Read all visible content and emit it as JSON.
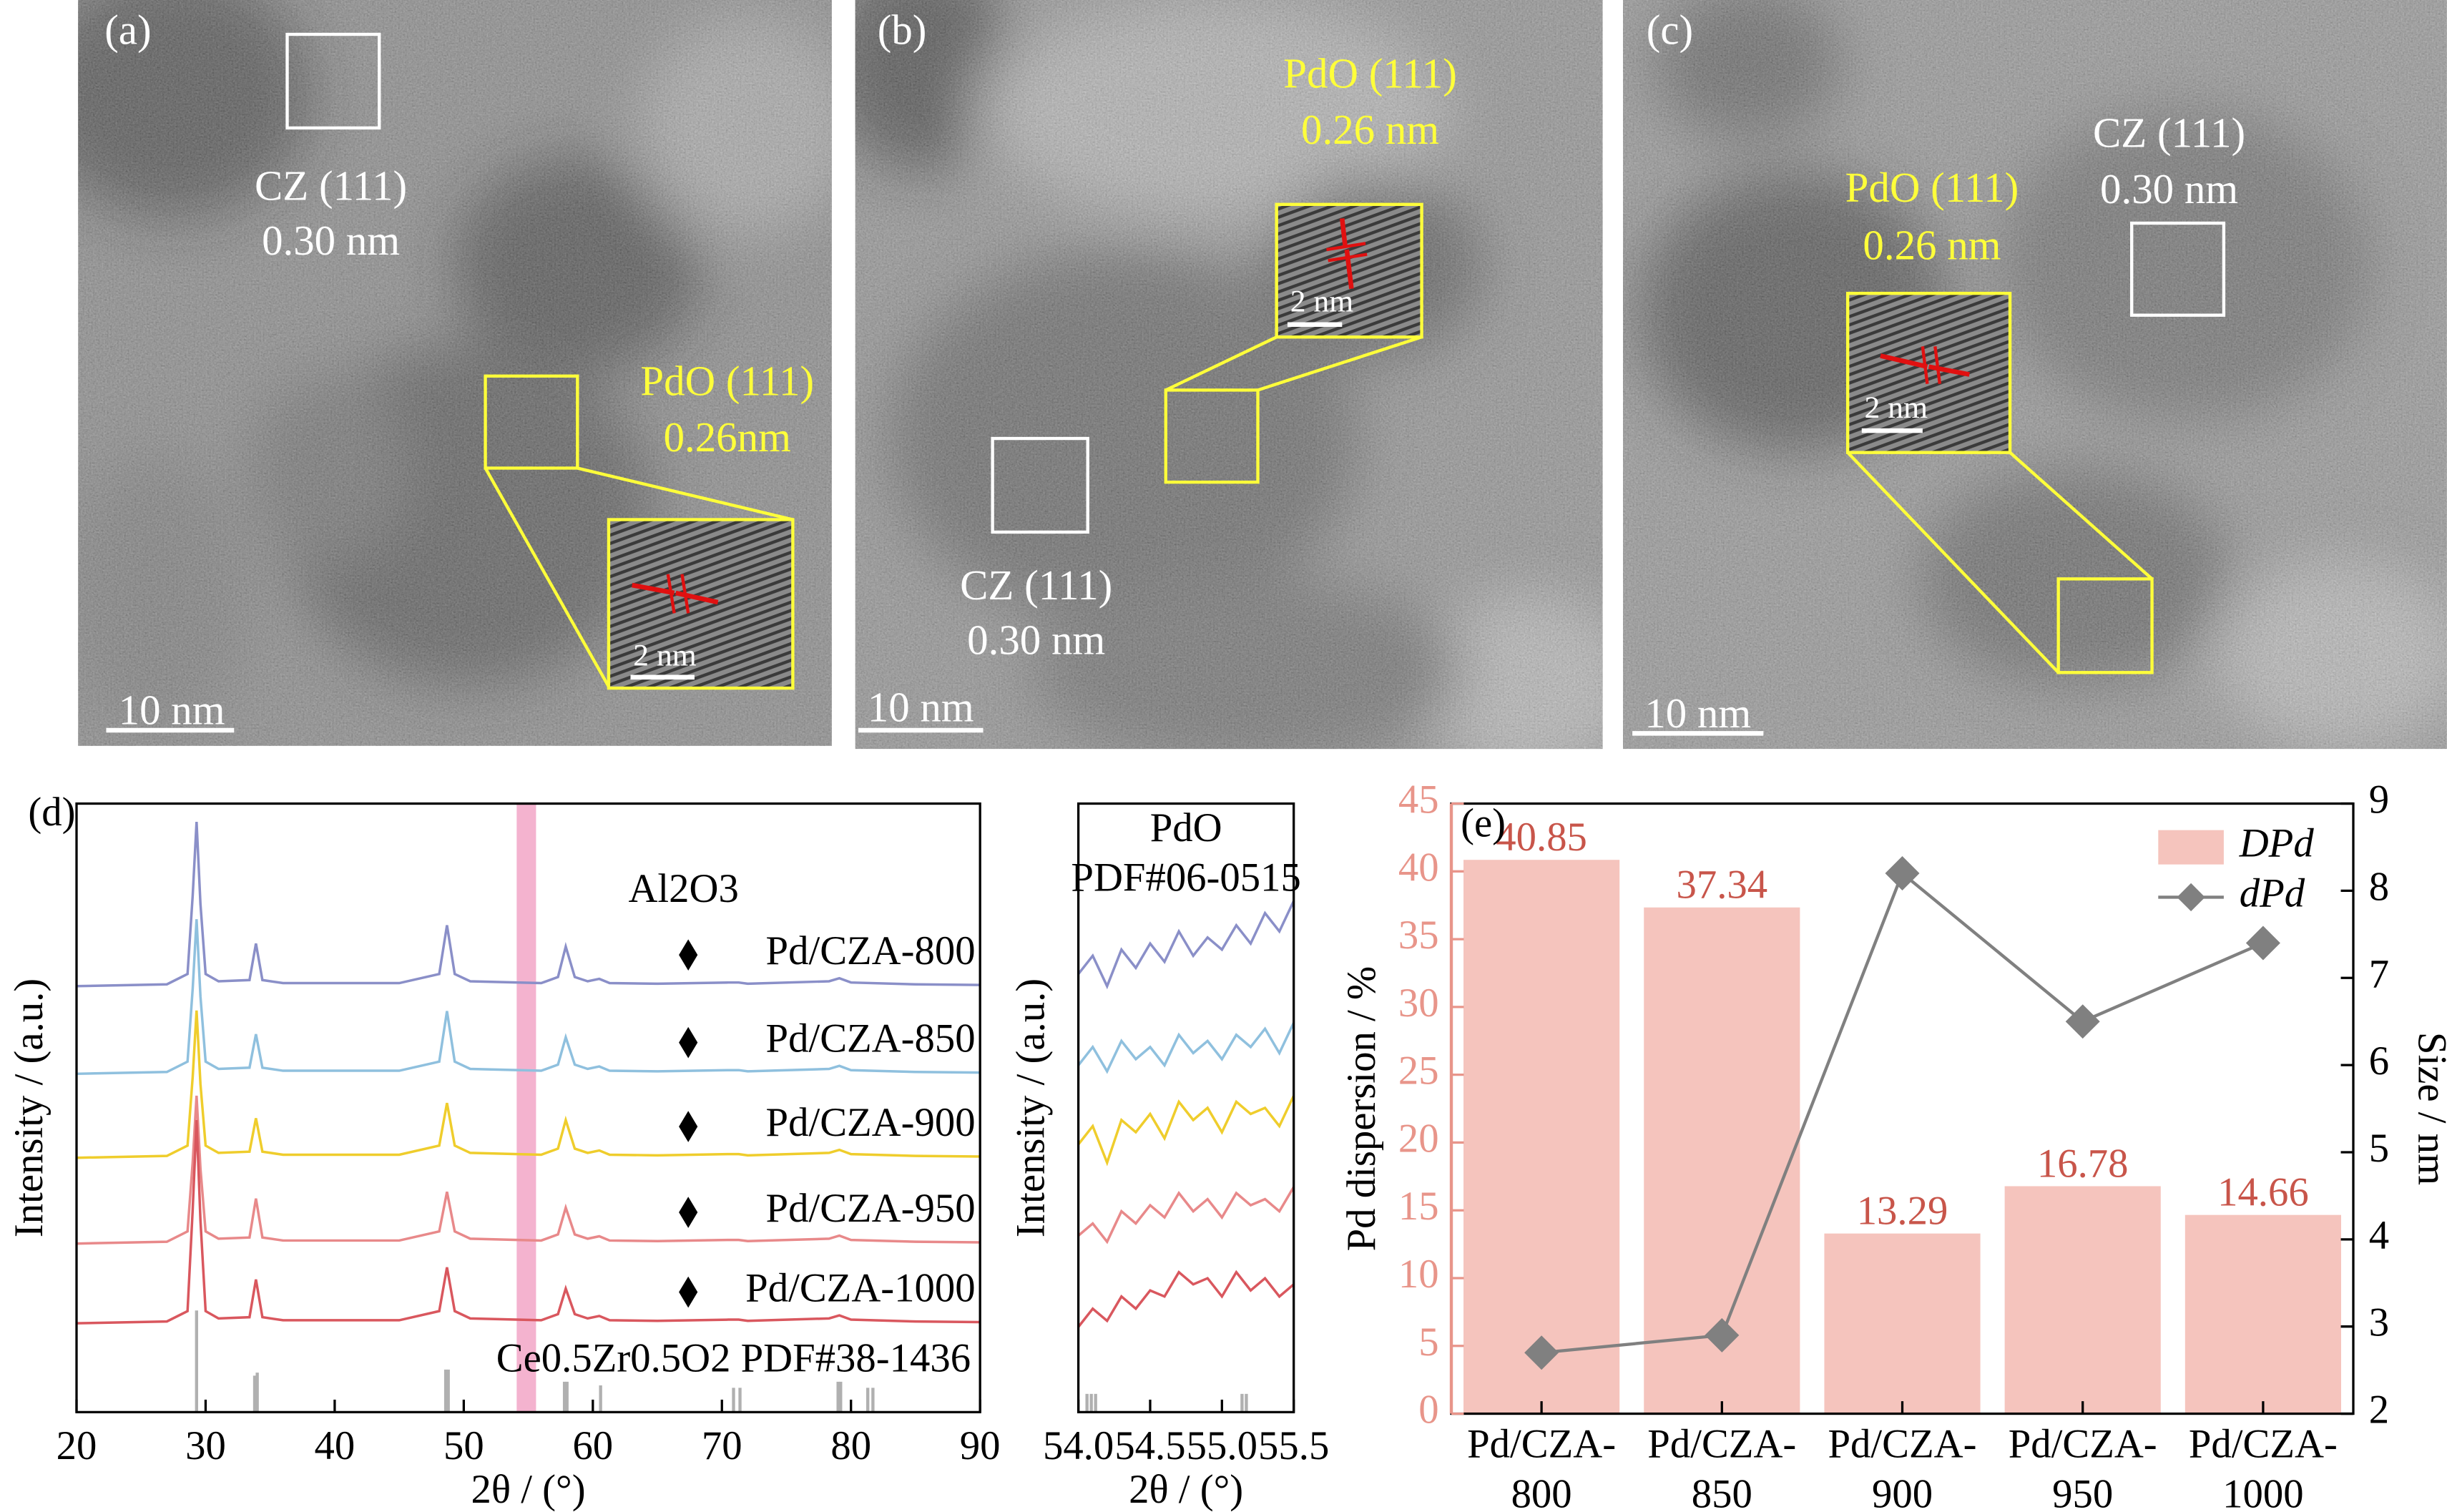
{
  "tem_panels": [
    {
      "label": "(a)",
      "annotations": [
        "CZ (111)",
        "0.30 nm",
        "PdO (111)",
        "0.26nm"
      ],
      "scale_bar": "10 nm",
      "inset_scale_bar": "2 nm"
    },
    {
      "label": "(b)",
      "annotations": [
        "PdO (111)",
        "0.26 nm",
        "CZ (111)",
        "0.30 nm"
      ],
      "scale_bar": "10 nm",
      "inset_scale_bar": "2 nm"
    },
    {
      "label": "(c)",
      "annotations": [
        "CZ (111)",
        "0.30 nm",
        "PdO (111)",
        "0.26 nm"
      ],
      "scale_bar": "10 nm",
      "inset_scale_bar": "2 nm"
    }
  ],
  "chart_data": [
    {
      "type": "line",
      "panel_label": "(d)",
      "x_label": "2θ / (°)",
      "y_label": "Intensity / (a.u.)",
      "annotation": "Al2O3",
      "xlim": [
        20,
        90
      ],
      "xticks": [
        20,
        30,
        40,
        50,
        60,
        70,
        80,
        90
      ],
      "ylim": [
        0,
        100
      ],
      "highlight": [
        54.1,
        55.6
      ],
      "highlight_color": "#f4b3cf",
      "x": [
        20,
        27,
        28.6,
        29.0,
        29.3,
        29.6,
        30.0,
        31,
        33.4,
        33.9,
        34.4,
        36,
        45,
        48.1,
        48.7,
        49.3,
        50.5,
        56,
        57.3,
        57.9,
        58.6,
        59.6,
        60.5,
        61.3,
        65,
        70.5,
        71.3,
        72,
        78.3,
        79.1,
        80,
        85,
        90
      ],
      "series": [
        {
          "name": "Pd/CZA-800",
          "color": "#8a8fc8",
          "values": [
            70,
            70.3,
            72,
            84.9,
            97,
            83.5,
            72,
            70.8,
            71,
            77,
            71,
            70.5,
            70.5,
            72,
            80,
            72,
            70.8,
            70.5,
            71.5,
            76.5,
            71.5,
            70.8,
            71.2,
            70.5,
            70.4,
            70.6,
            70.6,
            70.4,
            70.8,
            71.3,
            70.6,
            70.3,
            70.2
          ]
        },
        {
          "name": "Pd/CZA-850",
          "color": "#8fc0de",
          "values": [
            55.6,
            55.9,
            57.6,
            69.6,
            81,
            68.3,
            57.6,
            56.4,
            56.6,
            62.1,
            56.6,
            56.1,
            56.1,
            57.6,
            65.9,
            57.6,
            56.4,
            56.1,
            57.1,
            61.6,
            57.1,
            56.4,
            56.8,
            56.1,
            56,
            56.2,
            56.2,
            56,
            56.4,
            56.9,
            56.2,
            55.9,
            55.8
          ]
        },
        {
          "name": "Pd/CZA-900",
          "color": "#efcd2c",
          "values": [
            41.8,
            42.1,
            43.8,
            55.1,
            66,
            53.9,
            43.8,
            42.6,
            42.8,
            48.3,
            42.8,
            42.3,
            42.3,
            43.8,
            50.8,
            43.8,
            42.6,
            42.3,
            43.3,
            48,
            43.3,
            42.6,
            43,
            42.3,
            42.2,
            42.4,
            42.4,
            42.2,
            42.6,
            43.1,
            42.4,
            42.1,
            42
          ]
        },
        {
          "name": "Pd/CZA-950",
          "color": "#e8898a",
          "values": [
            27.7,
            28,
            29.7,
            41.1,
            52,
            40,
            29.7,
            28.5,
            28.7,
            35.1,
            28.7,
            28.2,
            28.2,
            29.7,
            36.2,
            29.7,
            28.5,
            28.2,
            29.2,
            33.6,
            29.2,
            28.5,
            28.9,
            28.2,
            28.1,
            28.3,
            28.3,
            28.1,
            28.5,
            29,
            28.3,
            28,
            27.9
          ]
        },
        {
          "name": "Pd/CZA-1000",
          "color": "#d9575e",
          "values": [
            14.6,
            14.9,
            16.6,
            33.3,
            48,
            31.5,
            16.6,
            15.4,
            15.6,
            21.8,
            15.6,
            15.1,
            15.1,
            16.6,
            23.8,
            16.6,
            15.4,
            15.1,
            16.1,
            20.3,
            16.1,
            15.4,
            15.8,
            15.1,
            15,
            15.2,
            15.2,
            15,
            15.4,
            15.9,
            15.2,
            14.9,
            14.8
          ]
        }
      ],
      "reference": {
        "name": "Ce0.5Zr0.5O2 PDF#38-1436",
        "color": "#b0b0b0",
        "x": [
          29.3,
          33.8,
          34.0,
          48.6,
          48.8,
          57.8,
          58.0,
          60.6,
          70.9,
          71.4,
          79.0,
          79.2,
          81.3,
          81.7
        ],
        "values": [
          16.7,
          6,
          6.5,
          7,
          7,
          5,
          5,
          4.4,
          4,
          4,
          5,
          5,
          4,
          4
        ]
      }
    },
    {
      "type": "line",
      "title": "PdO",
      "subtitle": "PDF#06-0515",
      "x_label": "2θ / (°)",
      "y_label": "Intensity / (a.u.)",
      "xlim": [
        54.0,
        55.5
      ],
      "xticks": [
        {
          "value": 54.0,
          "label": "54.0"
        },
        54.5,
        {
          "value": 55.0,
          "label": "55.0"
        },
        55.5
      ],
      "ylim": [
        0,
        100
      ],
      "x": [
        54.0,
        54.1,
        54.2,
        54.3,
        54.4,
        54.5,
        54.6,
        54.7,
        54.8,
        54.9,
        55.0,
        55.1,
        55.2,
        55.3,
        55.4,
        55.5
      ],
      "series": [
        {
          "color": "#8a8fc8",
          "values": [
            72,
            75,
            70,
            76,
            73,
            77,
            74,
            79,
            75,
            78,
            76,
            80,
            77,
            82,
            79,
            84
          ]
        },
        {
          "color": "#8fc0de",
          "values": [
            57,
            60,
            56,
            61,
            58,
            60,
            57,
            62,
            59,
            61,
            58,
            62,
            60,
            63,
            59,
            64
          ]
        },
        {
          "color": "#efcd2c",
          "values": [
            44,
            47,
            41,
            48,
            46,
            49,
            45,
            51,
            48,
            50,
            46,
            51,
            49,
            50,
            47,
            52
          ]
        },
        {
          "color": "#e8898a",
          "values": [
            29,
            31,
            28,
            33,
            31,
            34,
            32,
            36,
            33,
            35,
            32,
            36,
            34,
            35,
            33,
            37
          ]
        },
        {
          "color": "#d9575e",
          "values": [
            14,
            17,
            15,
            19,
            17,
            20,
            19,
            23,
            21,
            22,
            19,
            23,
            20,
            22,
            19,
            21
          ]
        }
      ],
      "reference": {
        "color": "#b0b0b0",
        "x": [
          54.06,
          54.09,
          54.12,
          55.14,
          55.17
        ],
        "values": [
          3,
          3,
          3,
          3,
          3
        ]
      }
    },
    {
      "type": "bar",
      "panel_label": "(e)",
      "y_label": "Pd dispersion / %",
      "y2_label": "Size / nm",
      "categories": [
        "Pd/CZA-\n800",
        "Pd/CZA-\n850",
        "Pd/CZA-\n900",
        "Pd/CZA-\n950",
        "Pd/CZA-\n1000"
      ],
      "ylim": [
        0,
        45
      ],
      "yticks": [
        0,
        5,
        10,
        15,
        20,
        25,
        30,
        35,
        40,
        45
      ],
      "y2lim": [
        2,
        9
      ],
      "y2ticks": [
        2,
        3,
        4,
        5,
        6,
        7,
        8,
        9
      ],
      "legend": "upper right",
      "left_axis_color": "#e8958a",
      "value_label_color": "#c8554a",
      "series": [
        {
          "name": "DPd",
          "color": "#f5c4bd",
          "values": [
            40.85,
            37.34,
            13.29,
            16.78,
            14.66
          ]
        },
        {
          "name": "dPd",
          "color": "#808080",
          "axis": "y2",
          "values": [
            2.7,
            2.9,
            8.2,
            6.5,
            7.4
          ]
        }
      ]
    }
  ]
}
